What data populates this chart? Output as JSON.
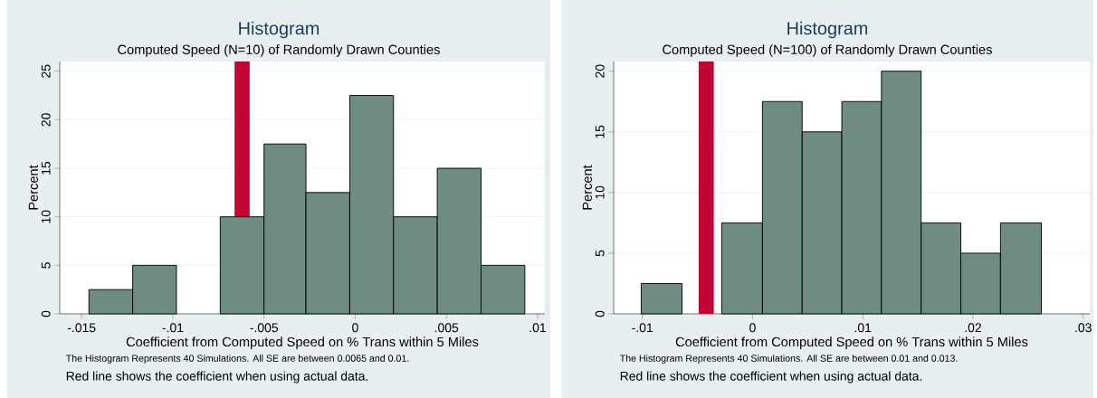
{
  "chart_data": [
    {
      "type": "histogram",
      "title": "Histogram",
      "subtitle": "Computed Speed (N=10) of Randomly Drawn Counties",
      "xlabel": "Coefficient from  Computed Speed on % Trans within 5 Miles",
      "ylabel": "Percent",
      "annotations": [
        "The Histogram Represents 40 Simulations. All SE are between 0.0065 and 0.01.",
        "Red line shows the coefficient when using actual data."
      ],
      "bins": [
        -0.0146,
        -0.0122,
        -0.0098,
        -0.0074,
        -0.005,
        -0.0027,
        -0.0003,
        0.0021,
        0.0045,
        0.0069,
        0.0093
      ],
      "values": [
        2.5,
        5,
        0,
        10,
        17.5,
        12.5,
        22.5,
        10,
        15,
        5
      ],
      "color": "#6e8d80",
      "xlim": [
        -0.0162,
        0.0104
      ],
      "ylim": [
        0,
        26
      ],
      "xticks": [
        {
          "value": -0.015,
          "label": "-.015"
        },
        {
          "value": -0.01,
          "label": "-.01"
        },
        {
          "value": -0.005,
          "label": "-.005"
        },
        0,
        {
          "value": 0.005,
          "label": ".005"
        },
        {
          "value": 0.01,
          "label": ".01"
        }
      ],
      "yticks": [
        0,
        5,
        10,
        15,
        20,
        25
      ],
      "grid": "y",
      "ref_lines": [
        {
          "axis": "x",
          "value": -0.0062,
          "color": "#c10534"
        }
      ]
    },
    {
      "type": "histogram",
      "title": "Histogram",
      "subtitle": "Computed Speed (N=100) of Randomly Drawn Counties",
      "xlabel": "Coefficient from  Computed Speed on % Trans within 5 Miles",
      "ylabel": "Percent",
      "annotations": [
        "The Histogram Represents 40 Simulations. All SE are between 0.01 and 0.013.",
        "Red line shows the coefficient when using actual data."
      ],
      "bins": [
        -0.0101,
        -0.0064,
        -0.0028,
        0.0009,
        0.0045,
        0.0081,
        0.0117,
        0.0153,
        0.0189,
        0.0225,
        0.0262
      ],
      "values": [
        2.5,
        0,
        7.5,
        17.5,
        15,
        17.5,
        20,
        7.5,
        5,
        7.5
      ],
      "color": "#6e8d80",
      "xlim": [
        -0.0126,
        0.0306
      ],
      "ylim": [
        0,
        20.8
      ],
      "xticks": [
        {
          "value": -0.01,
          "label": "-.01"
        },
        0,
        {
          "value": 0.01,
          "label": ".01"
        },
        {
          "value": 0.02,
          "label": ".02"
        },
        {
          "value": 0.03,
          "label": ".03"
        }
      ],
      "yticks": [
        0,
        5,
        10,
        15,
        20
      ],
      "grid": "y",
      "ref_lines": [
        {
          "axis": "x",
          "value": -0.0042,
          "color": "#c10534"
        }
      ]
    }
  ]
}
